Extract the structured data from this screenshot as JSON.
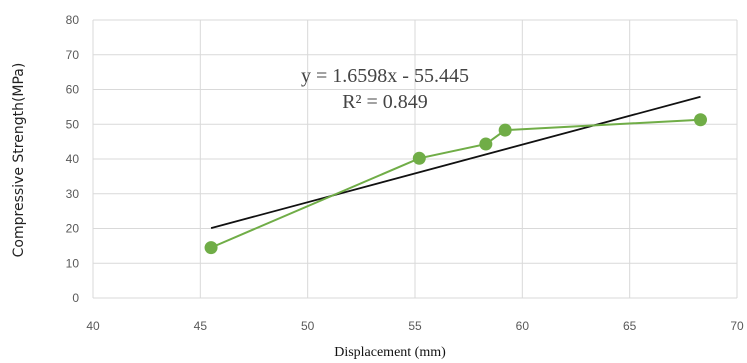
{
  "chart_data": {
    "type": "scatter",
    "title": "",
    "xlabel": "Displacement (mm)",
    "ylabel": "Compressive Strength(MPa)",
    "xlim": [
      40,
      70
    ],
    "ylim": [
      0,
      80
    ],
    "xticks": [
      40,
      45,
      50,
      55,
      60,
      65,
      70
    ],
    "yticks": [
      0,
      10,
      20,
      30,
      40,
      50,
      60,
      70,
      80
    ],
    "grid": true,
    "series": [
      {
        "x": [
          45.5,
          55.2,
          58.3,
          59.2,
          68.3
        ],
        "y": [
          14.5,
          40.2,
          44.3,
          48.3,
          51.3
        ],
        "color": "#70ad47",
        "style": "line-with-markers"
      }
    ],
    "trendline": {
      "x": [
        45.5,
        68.3
      ],
      "y": [
        20.1,
        57.9
      ],
      "color": "#111111",
      "equation": "y = 1.6598x - 55.445",
      "r2": "R² = 0.849"
    }
  }
}
